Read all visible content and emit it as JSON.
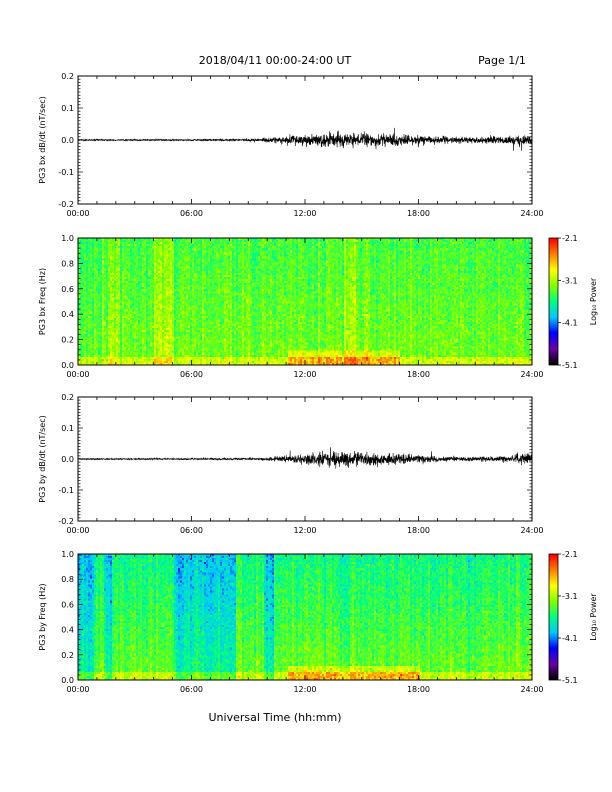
{
  "header": {
    "title": "2018/04/11  00:00-24:00 UT",
    "page": "Page 1/1"
  },
  "footer": {
    "xlabel": "Universal Time (hh:mm)"
  },
  "colors": {
    "trace": "#000000",
    "colormap": [
      "#000000",
      "#6a00a8",
      "#0000ff",
      "#00c8ff",
      "#00ff80",
      "#80ff00",
      "#ffff00",
      "#ff8000",
      "#ff0000"
    ]
  },
  "chart_data": [
    {
      "type": "line",
      "ylabel": "PG3 bx dB/dt (nT/sec)",
      "xlim": [
        "00:00",
        "24:00"
      ],
      "ylim": [
        -0.2,
        0.2
      ],
      "x_ticks": [
        "00:00",
        "06:00",
        "12:00",
        "18:00",
        "24:00"
      ],
      "y_ticks": [
        "0.2",
        "0.1",
        "0.0",
        "-0.1",
        "-0.2"
      ],
      "series": [
        {
          "baseline": 0.0,
          "envelope": {
            "x_hours": [
              0,
              6,
              9,
              10,
              11,
              12,
              13,
              14,
              15,
              16,
              17,
              18,
              19,
              20,
              21,
              22,
              23,
              24
            ],
            "amplitude": [
              0.004,
              0.004,
              0.007,
              0.012,
              0.02,
              0.028,
              0.035,
              0.038,
              0.032,
              0.036,
              0.03,
              0.024,
              0.02,
              0.016,
              0.015,
              0.017,
              0.022,
              0.03
            ]
          }
        }
      ]
    },
    {
      "type": "heatmap",
      "ylabel": "PG3 bx Freq (Hz)",
      "xlim": [
        "00:00",
        "24:00"
      ],
      "ylim": [
        0.0,
        1.0
      ],
      "x_ticks": [
        "00:00",
        "06:00",
        "12:00",
        "18:00",
        "24:00"
      ],
      "y_ticks": [
        "1.0",
        "0.8",
        "0.6",
        "0.4",
        "0.2",
        "0.0"
      ],
      "colorbar": {
        "label": "Log₁₀ Power",
        "range": [
          -5.1,
          -2.1
        ],
        "ticks": [
          "-2.1",
          "-3.1",
          "-4.1",
          "-5.1"
        ]
      },
      "activity_hours": [
        11,
        17
      ],
      "bright_bands_hours": [
        [
          1.5,
          2.2
        ],
        [
          4.0,
          5.0
        ],
        [
          14.0,
          14.6
        ]
      ]
    },
    {
      "type": "line",
      "ylabel": "PG3 by dB/dt (nT/sec)",
      "xlim": [
        "00:00",
        "24:00"
      ],
      "ylim": [
        -0.2,
        0.2
      ],
      "x_ticks": [
        "00:00",
        "06:00",
        "12:00",
        "18:00",
        "24:00"
      ],
      "y_ticks": [
        "0.2",
        "0.1",
        "0.0",
        "-0.1",
        "-0.2"
      ],
      "series": [
        {
          "baseline": 0.0,
          "envelope": {
            "x_hours": [
              0,
              6,
              9,
              10,
              11,
              12,
              13,
              14,
              15,
              16,
              17,
              18,
              19,
              20,
              21,
              22,
              23,
              24
            ],
            "amplitude": [
              0.004,
              0.004,
              0.006,
              0.01,
              0.018,
              0.03,
              0.04,
              0.045,
              0.035,
              0.032,
              0.028,
              0.022,
              0.015,
              0.012,
              0.012,
              0.014,
              0.02,
              0.035
            ]
          }
        }
      ]
    },
    {
      "type": "heatmap",
      "ylabel": "PG3 by Freq (Hz)",
      "xlim": [
        "00:00",
        "24:00"
      ],
      "ylim": [
        0.0,
        1.0
      ],
      "x_ticks": [
        "00:00",
        "06:00",
        "12:00",
        "18:00",
        "24:00"
      ],
      "y_ticks": [
        "1.0",
        "0.8",
        "0.6",
        "0.4",
        "0.2",
        "0.0"
      ],
      "colorbar": {
        "label": "Log₁₀ Power",
        "range": [
          -5.1,
          -2.1
        ],
        "ticks": [
          "-2.1",
          "-3.1",
          "-4.1",
          "-5.1"
        ]
      },
      "activity_hours": [
        11,
        18
      ],
      "dark_bands_hours": [
        [
          0.0,
          0.8
        ],
        [
          1.3,
          1.7
        ],
        [
          5.0,
          8.3
        ],
        [
          9.8,
          10.3
        ]
      ]
    }
  ]
}
